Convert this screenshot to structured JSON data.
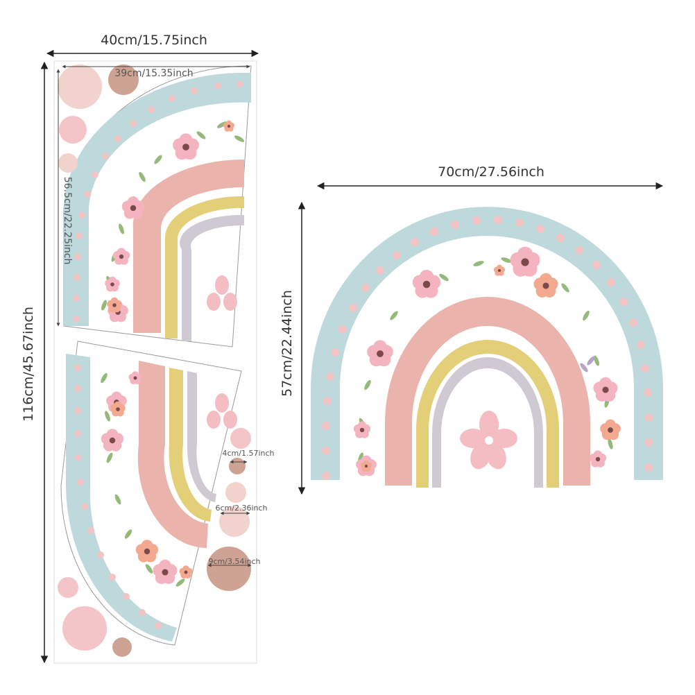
{
  "dimensions": {
    "sheet_width": "40cm/15.75inch",
    "sheet_height": "116cm/45.67inch",
    "part_width": "39cm/15.35inch",
    "part_height": "56.5cm/22.25inch",
    "rainbow_width": "70cm/27.56inch",
    "rainbow_height": "57cm/22.44inch",
    "dot_small": "4cm/1.57inch",
    "dot_medium": "6cm/2.36inch",
    "dot_large": "9cm/3.54inch"
  },
  "colors": {
    "sky_blue": "#bdd9dc",
    "pink_dot": "#f2c4c4",
    "salmon": "#eab3ab",
    "mustard": "#e2cf78",
    "lavender_gray": "#cfc9d3",
    "flower_pink": "#f4bcc3",
    "dot_light": "#f1d2cc",
    "dot_brown": "#cfa393",
    "dot_pink": "#f3c5c9",
    "leaf_green": "#95b97a",
    "cut_line": "#777777",
    "dim_line": "#222222"
  },
  "icons": [
    "rainbow-illustration",
    "flower-icon",
    "dimension-arrow",
    "floral-garland"
  ]
}
